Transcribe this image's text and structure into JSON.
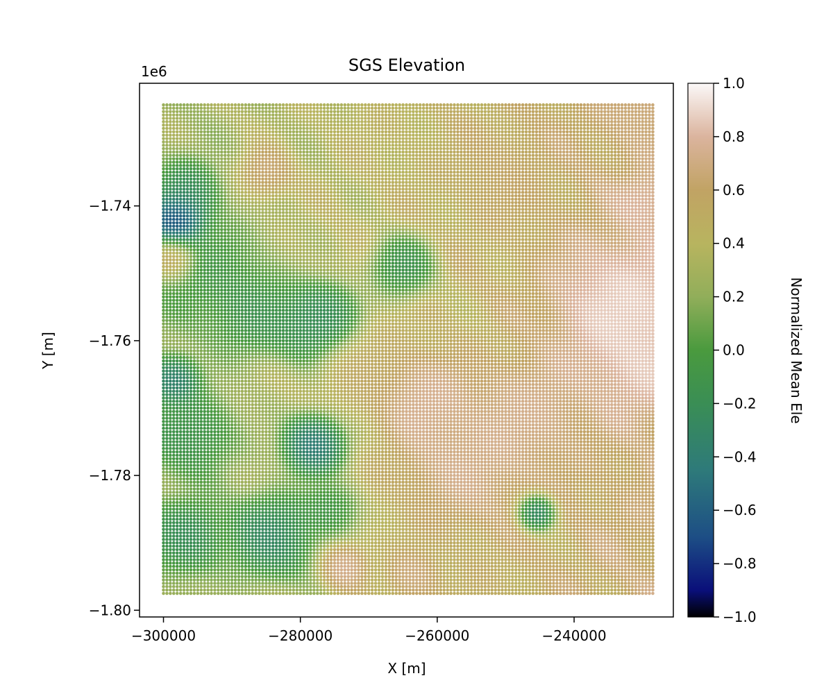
{
  "chart_data": {
    "type": "scatter",
    "title": "SGS Elevation",
    "xlabel": "X [m]",
    "ylabel": "Y [m]",
    "y_offset_label": "1e6",
    "xlim": [
      -303500,
      -225500
    ],
    "ylim": [
      -1.801,
      -1.7218
    ],
    "x_ticks": [
      {
        "value": -300000,
        "label": "−300000"
      },
      {
        "value": -280000,
        "label": "−280000"
      },
      {
        "value": -260000,
        "label": "−260000"
      },
      {
        "value": -240000,
        "label": "−240000"
      }
    ],
    "y_ticks": [
      {
        "value": -1.74,
        "label": "−1.74"
      },
      {
        "value": -1.76,
        "label": "−1.76"
      },
      {
        "value": -1.78,
        "label": "−1.78"
      },
      {
        "value": -1.8,
        "label": "−1.80"
      }
    ],
    "grid": {
      "x_start": -300000,
      "x_end": -228500,
      "y_start": -1.725,
      "y_end": -1.7975,
      "spacing": 0.0005,
      "x_spacing": 500
    },
    "value_range": [
      -1.0,
      1.0
    ],
    "colormap": "gist_earth",
    "grid_on": false,
    "features": [
      {
        "x": -298000,
        "y": -1.7422,
        "value": -1.0,
        "radius": 2200
      },
      {
        "x": -296500,
        "y": -1.738,
        "value": -0.35,
        "radius": 2600
      },
      {
        "x": -293500,
        "y": -1.75,
        "value": -0.15,
        "radius": 4500
      },
      {
        "x": -286500,
        "y": -1.756,
        "value": -0.25,
        "radius": 3500
      },
      {
        "x": -278500,
        "y": -1.7575,
        "value": -0.35,
        "radius": 3000
      },
      {
        "x": -276000,
        "y": -1.756,
        "value": -0.3,
        "radius": 2500
      },
      {
        "x": -265000,
        "y": -1.749,
        "value": -0.3,
        "radius": 2500
      },
      {
        "x": -298500,
        "y": -1.766,
        "value": -0.55,
        "radius": 2000
      },
      {
        "x": -278000,
        "y": -1.7755,
        "value": -0.65,
        "radius": 2500
      },
      {
        "x": -296000,
        "y": -1.774,
        "value": -0.25,
        "radius": 3500
      },
      {
        "x": -284000,
        "y": -1.789,
        "value": -0.45,
        "radius": 3500
      },
      {
        "x": -296500,
        "y": -1.789,
        "value": -0.35,
        "radius": 3000
      },
      {
        "x": -245500,
        "y": -1.7855,
        "value": -0.55,
        "radius": 1500
      },
      {
        "x": -275500,
        "y": -1.785,
        "value": -0.2,
        "radius": 2200
      },
      {
        "x": -262500,
        "y": -1.7685,
        "value": 0.85,
        "radius": 3500
      },
      {
        "x": -233000,
        "y": -1.755,
        "value": 0.95,
        "radius": 5500
      },
      {
        "x": -229500,
        "y": -1.763,
        "value": 0.9,
        "radius": 4500
      },
      {
        "x": -256000,
        "y": -1.777,
        "value": 0.8,
        "radius": 5500
      },
      {
        "x": -246000,
        "y": -1.77,
        "value": 0.78,
        "radius": 4000
      },
      {
        "x": -273500,
        "y": -1.7935,
        "value": 0.85,
        "radius": 1800
      },
      {
        "x": -298500,
        "y": -1.748,
        "value": 0.85,
        "radius": 1800
      },
      {
        "x": -285000,
        "y": -1.735,
        "value": 0.75,
        "radius": 2000
      },
      {
        "x": -263500,
        "y": -1.795,
        "value": 0.75,
        "radius": 2000
      },
      {
        "x": -229500,
        "y": -1.7395,
        "value": 0.85,
        "radius": 2200
      },
      {
        "x": -231000,
        "y": -1.726,
        "value": 0.7,
        "radius": 2500
      },
      {
        "x": -250000,
        "y": -1.735,
        "value": 0.6,
        "radius": 3500
      },
      {
        "x": -270000,
        "y": -1.765,
        "value": 0.55,
        "radius": 3500
      }
    ],
    "colorbar": {
      "label": "Normalized Mean Ele",
      "ticks": [
        {
          "value": 1.0,
          "label": "1.0"
        },
        {
          "value": 0.8,
          "label": "0.8"
        },
        {
          "value": 0.6,
          "label": "0.6"
        },
        {
          "value": 0.4,
          "label": "0.4"
        },
        {
          "value": 0.2,
          "label": "0.2"
        },
        {
          "value": 0.0,
          "label": "0.0"
        },
        {
          "value": -0.2,
          "label": "−0.2"
        },
        {
          "value": -0.4,
          "label": "−0.4"
        },
        {
          "value": -0.6,
          "label": "−0.6"
        },
        {
          "value": -0.8,
          "label": "−0.8"
        },
        {
          "value": -1.0,
          "label": "−1.0"
        }
      ],
      "stops": [
        {
          "value": -1.0,
          "color": "#000000"
        },
        {
          "value": -0.9,
          "color": "#0a0f7a"
        },
        {
          "value": -0.7,
          "color": "#1d4e85"
        },
        {
          "value": -0.45,
          "color": "#2e7a7a"
        },
        {
          "value": -0.2,
          "color": "#3a8e55"
        },
        {
          "value": 0.0,
          "color": "#4a9a3e"
        },
        {
          "value": 0.2,
          "color": "#91ae5a"
        },
        {
          "value": 0.4,
          "color": "#b8b45f"
        },
        {
          "value": 0.6,
          "color": "#c1a364"
        },
        {
          "value": 0.8,
          "color": "#dbb49e"
        },
        {
          "value": 1.0,
          "color": "#fbf8f8"
        }
      ]
    }
  }
}
